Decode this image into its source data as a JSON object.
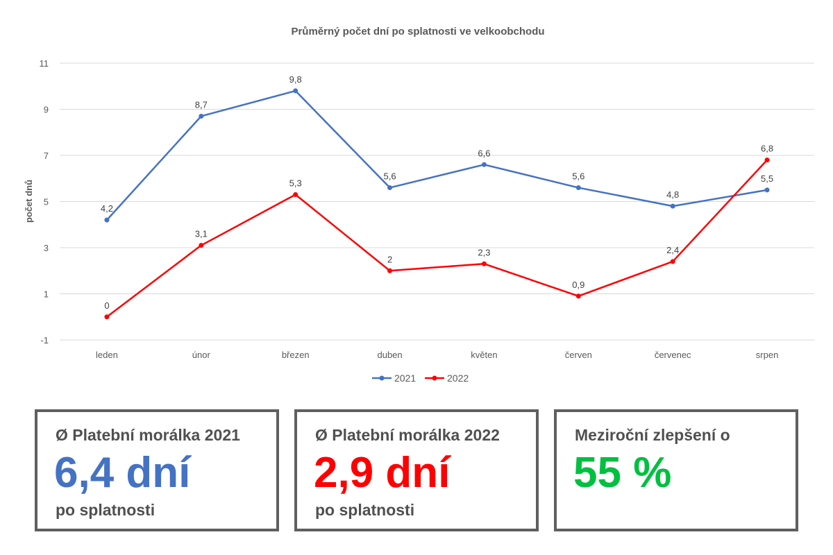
{
  "chart_data": {
    "type": "line",
    "title": "Průměrný počet dní po splatnosti ve velkoobchodu",
    "ylabel": "počet dnů",
    "xlabel": "",
    "ylim": [
      -1,
      11
    ],
    "yticks": [
      -1,
      1,
      3,
      5,
      7,
      9,
      11
    ],
    "grid": true,
    "legend_position": "bottom",
    "categories": [
      "leden",
      "únor",
      "březen",
      "duben",
      "květen",
      "červen",
      "červenec",
      "srpen"
    ],
    "series": [
      {
        "name": "2021",
        "color": "#4472c4",
        "values": [
          4.2,
          8.7,
          9.8,
          5.6,
          6.6,
          5.6,
          4.8,
          5.5
        ],
        "labels": [
          "4,2",
          "8,7",
          "9,8",
          "5,6",
          "6,6",
          "5,6",
          "4,8",
          "5,5"
        ]
      },
      {
        "name": "2022",
        "color": "#ff0000",
        "values": [
          0,
          3.1,
          5.3,
          2,
          2.3,
          0.9,
          2.4,
          6.8
        ],
        "labels": [
          "0",
          "3,1",
          "5,3",
          "2",
          "2,3",
          "0,9",
          "2,4",
          "6,8"
        ]
      }
    ]
  },
  "cards": [
    {
      "label": "Ø Platební morálka 2021",
      "value": "6,4 dní",
      "sub": "po splatnosti",
      "color": "#4472c4"
    },
    {
      "label": "Ø Platební morálka 2022",
      "value": "2,9 dní",
      "sub": "po splatnosti",
      "color": "#ff0000"
    },
    {
      "label": "Meziroční zlepšení o",
      "value": "55 %",
      "sub": "",
      "color": "#00c040"
    }
  ]
}
